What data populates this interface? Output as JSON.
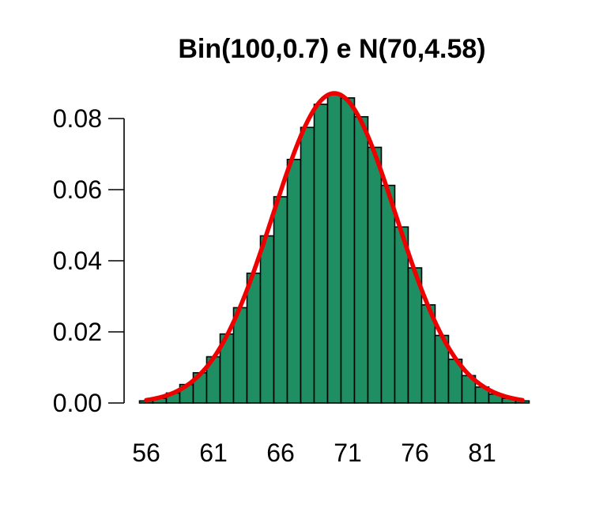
{
  "chart_data": {
    "type": "bar",
    "title": "Bin(100,0.7) e N(70,4.58)",
    "xlabel": "",
    "ylabel": "",
    "x_ticks": [
      "56",
      "61",
      "66",
      "71",
      "76",
      "81"
    ],
    "y_ticks": [
      "0.00",
      "0.02",
      "0.04",
      "0.06",
      "0.08"
    ],
    "ylim": [
      0,
      0.087
    ],
    "xlim": [
      55,
      85
    ],
    "categories": [
      56,
      57,
      58,
      59,
      60,
      61,
      62,
      63,
      64,
      65,
      66,
      67,
      68,
      69,
      70,
      71,
      72,
      73,
      74,
      75,
      76,
      77,
      78,
      79,
      80,
      81,
      82,
      83,
      84
    ],
    "series": [
      {
        "values": [
          0.0006,
          0.0013,
          0.0028,
          0.0052,
          0.0085,
          0.013,
          0.0194,
          0.0268,
          0.0365,
          0.047,
          0.058,
          0.0685,
          0.0775,
          0.084,
          0.0868,
          0.0858,
          0.0805,
          0.0719,
          0.0612,
          0.0495,
          0.038,
          0.0276,
          0.019,
          0.0123,
          0.0077,
          0.0045,
          0.0025,
          0.0013,
          0.0006
        ]
      },
      {
        "type": "line",
        "distribution": "normal",
        "mean": 70,
        "sd": 4.58,
        "x_range": [
          55,
          85
        ]
      }
    ],
    "colors": {
      "bars": "#1f8f63",
      "bar_border": "#000000",
      "curve": "#ee0000"
    },
    "grid": false,
    "legend": "none"
  }
}
